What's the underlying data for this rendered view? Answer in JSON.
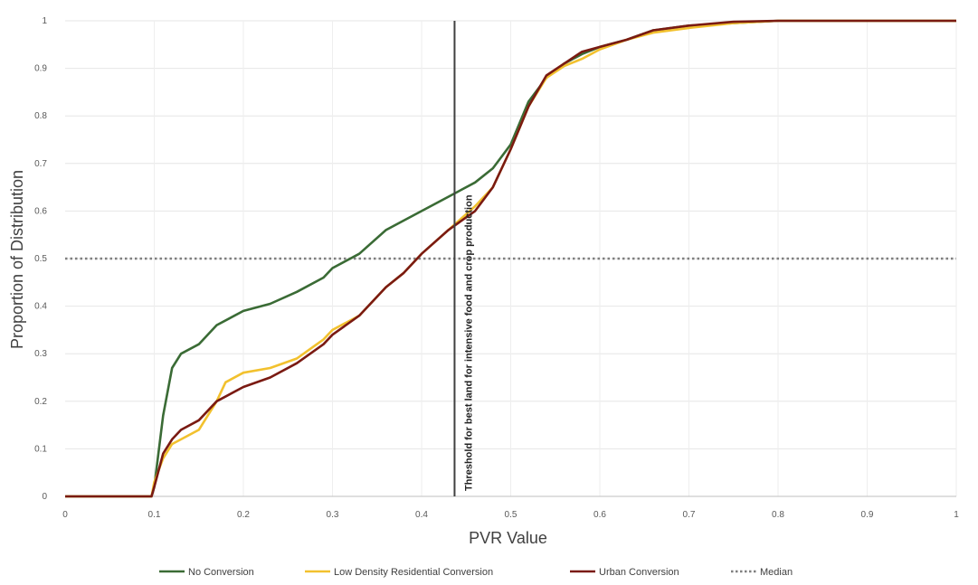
{
  "chart_data": {
    "type": "line",
    "title": "",
    "xlabel": "PVR Value",
    "ylabel": "Proportion of Distribution",
    "xlim": [
      0,
      1
    ],
    "ylim": [
      0,
      1
    ],
    "x_ticks": [
      "0",
      "0.1",
      "0.2",
      "0.3",
      "0.4",
      "0.5",
      "0.6",
      "0.7",
      "0.8",
      "0.9",
      "1"
    ],
    "y_ticks": [
      "0",
      "0.1",
      "0.2",
      "0.3",
      "0.4",
      "0.5",
      "0.6",
      "0.7",
      "0.8",
      "0.9",
      "1"
    ],
    "grid": true,
    "legend_position": "bottom",
    "series": [
      {
        "name": "No Conversion",
        "color": "#3a6b35",
        "points": [
          [
            0,
            0
          ],
          [
            0.097,
            0
          ],
          [
            0.1,
            0.02
          ],
          [
            0.11,
            0.17
          ],
          [
            0.12,
            0.27
          ],
          [
            0.13,
            0.3
          ],
          [
            0.15,
            0.32
          ],
          [
            0.17,
            0.36
          ],
          [
            0.2,
            0.39
          ],
          [
            0.23,
            0.405
          ],
          [
            0.26,
            0.43
          ],
          [
            0.29,
            0.46
          ],
          [
            0.3,
            0.48
          ],
          [
            0.33,
            0.51
          ],
          [
            0.36,
            0.56
          ],
          [
            0.38,
            0.58
          ],
          [
            0.4,
            0.6
          ],
          [
            0.43,
            0.63
          ],
          [
            0.46,
            0.66
          ],
          [
            0.48,
            0.69
          ],
          [
            0.5,
            0.74
          ],
          [
            0.52,
            0.83
          ],
          [
            0.54,
            0.88
          ],
          [
            0.56,
            0.91
          ],
          [
            0.58,
            0.93
          ],
          [
            0.6,
            0.945
          ],
          [
            0.63,
            0.96
          ],
          [
            0.66,
            0.98
          ],
          [
            0.7,
            0.99
          ],
          [
            0.75,
            0.995
          ],
          [
            0.8,
            1.0
          ],
          [
            1.0,
            1.0
          ]
        ]
      },
      {
        "name": "Low Density Residential Conversion",
        "color": "#f2c12e",
        "points": [
          [
            0,
            0
          ],
          [
            0.097,
            0
          ],
          [
            0.1,
            0.03
          ],
          [
            0.11,
            0.08
          ],
          [
            0.12,
            0.11
          ],
          [
            0.13,
            0.12
          ],
          [
            0.15,
            0.14
          ],
          [
            0.17,
            0.2
          ],
          [
            0.18,
            0.24
          ],
          [
            0.2,
            0.26
          ],
          [
            0.23,
            0.27
          ],
          [
            0.26,
            0.29
          ],
          [
            0.29,
            0.33
          ],
          [
            0.3,
            0.35
          ],
          [
            0.33,
            0.38
          ],
          [
            0.36,
            0.44
          ],
          [
            0.38,
            0.47
          ],
          [
            0.4,
            0.51
          ],
          [
            0.43,
            0.56
          ],
          [
            0.46,
            0.61
          ],
          [
            0.48,
            0.65
          ],
          [
            0.5,
            0.73
          ],
          [
            0.52,
            0.82
          ],
          [
            0.54,
            0.88
          ],
          [
            0.56,
            0.905
          ],
          [
            0.58,
            0.92
          ],
          [
            0.6,
            0.94
          ],
          [
            0.63,
            0.96
          ],
          [
            0.66,
            0.975
          ],
          [
            0.7,
            0.985
          ],
          [
            0.75,
            0.995
          ],
          [
            0.8,
            1.0
          ],
          [
            1.0,
            1.0
          ]
        ]
      },
      {
        "name": "Urban Conversion",
        "color": "#7a1a12",
        "points": [
          [
            0,
            0
          ],
          [
            0.097,
            0
          ],
          [
            0.1,
            0.02
          ],
          [
            0.11,
            0.09
          ],
          [
            0.12,
            0.12
          ],
          [
            0.13,
            0.14
          ],
          [
            0.15,
            0.16
          ],
          [
            0.17,
            0.2
          ],
          [
            0.2,
            0.23
          ],
          [
            0.23,
            0.25
          ],
          [
            0.26,
            0.28
          ],
          [
            0.29,
            0.32
          ],
          [
            0.3,
            0.34
          ],
          [
            0.33,
            0.38
          ],
          [
            0.36,
            0.44
          ],
          [
            0.38,
            0.47
          ],
          [
            0.4,
            0.51
          ],
          [
            0.43,
            0.56
          ],
          [
            0.46,
            0.6
          ],
          [
            0.48,
            0.65
          ],
          [
            0.5,
            0.73
          ],
          [
            0.52,
            0.82
          ],
          [
            0.54,
            0.885
          ],
          [
            0.56,
            0.91
          ],
          [
            0.58,
            0.935
          ],
          [
            0.6,
            0.945
          ],
          [
            0.63,
            0.96
          ],
          [
            0.66,
            0.98
          ],
          [
            0.7,
            0.99
          ],
          [
            0.75,
            0.998
          ],
          [
            0.8,
            1.0
          ],
          [
            1.0,
            1.0
          ]
        ]
      }
    ],
    "median_line": {
      "name": "Median",
      "y": 0.5,
      "color": "#7f7f7f",
      "style": "dotted"
    },
    "threshold_line": {
      "x": 0.437,
      "label": "Threshold for best land for intensive food and crop production",
      "color": "#404040"
    }
  }
}
